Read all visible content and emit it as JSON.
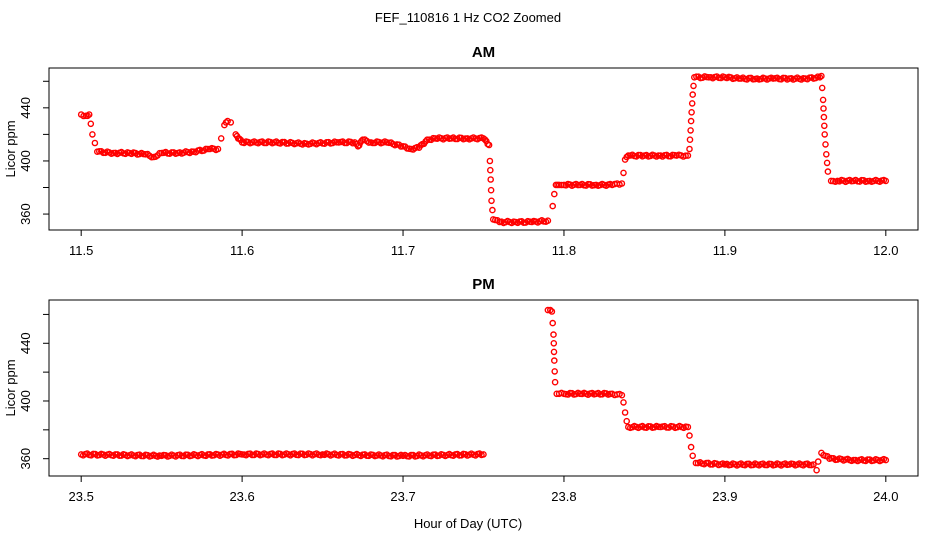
{
  "figure": {
    "title": "FEF_110816  1 Hz CO2 Zoomed",
    "xlabel": "Hour of Day (UTC)"
  },
  "colors": {
    "points": "#ff0000",
    "axes": "#000000",
    "background": "#ffffff"
  },
  "chart_data": [
    {
      "type": "scatter",
      "title": "AM",
      "xlabel": "Hour of Day (UTC)",
      "ylabel": "Licor ppm",
      "xlim": [
        11.48,
        12.02
      ],
      "ylim": [
        348,
        470
      ],
      "xticks": [
        "11.5",
        "11.6",
        "11.7",
        "11.8",
        "11.9",
        "12.0"
      ],
      "yticks": [
        "360",
        "400",
        "440"
      ],
      "grid": false,
      "marker": "open-circle",
      "series": [
        {
          "x": [
            11.5,
            11.503,
            11.504,
            11.505,
            11.506,
            11.507,
            11.51,
            11.52,
            11.53,
            11.54,
            11.545,
            11.55,
            11.56,
            11.57,
            11.58,
            11.585,
            11.587,
            11.589,
            11.591,
            11.593,
            11.596,
            11.6,
            11.62,
            11.64,
            11.66,
            11.67,
            11.672,
            11.675,
            11.68,
            11.69,
            11.7,
            11.705,
            11.71,
            11.715,
            11.72,
            11.73,
            11.74,
            11.75,
            11.7535,
            11.754,
            11.7545,
            11.755,
            11.756,
            11.76,
            11.77,
            11.78,
            11.79,
            11.793,
            11.794,
            11.795,
            11.796,
            11.797,
            11.8,
            11.81,
            11.82,
            11.83,
            11.836,
            11.837,
            11.838,
            11.839,
            11.84,
            11.85,
            11.86,
            11.87,
            11.877,
            11.878,
            11.879,
            11.88,
            11.881,
            11.89,
            11.9,
            11.91,
            11.92,
            11.93,
            11.94,
            11.95,
            11.959,
            11.96,
            11.961,
            11.962,
            11.963,
            11.964,
            11.966,
            11.97,
            11.98,
            11.99,
            12.0
          ],
          "y": [
            435,
            434,
            434,
            435,
            428,
            420,
            407,
            406,
            406,
            405,
            403,
            406,
            406,
            407,
            409,
            409,
            417,
            427,
            430,
            429,
            420,
            414,
            414,
            413,
            414,
            414,
            411,
            416,
            414,
            414,
            411,
            409,
            410,
            416,
            417,
            417,
            417,
            417,
            412,
            400,
            386,
            370,
            356,
            354,
            354,
            354,
            355,
            366,
            375,
            382,
            382,
            382,
            382,
            382,
            382,
            382,
            383,
            391,
            401,
            403,
            404,
            404,
            404,
            404,
            404,
            409,
            430,
            450,
            463,
            463,
            463,
            462,
            462,
            462,
            462,
            462,
            463,
            464,
            446,
            420,
            405,
            392,
            385,
            385,
            385,
            385,
            385
          ]
        }
      ]
    },
    {
      "type": "scatter",
      "title": "PM",
      "xlabel": "Hour of Day (UTC)",
      "ylabel": "Licor ppm",
      "xlim": [
        23.48,
        24.02
      ],
      "ylim": [
        348,
        470
      ],
      "xticks": [
        "23.5",
        "23.6",
        "23.7",
        "23.8",
        "23.9",
        "24.0"
      ],
      "yticks": [
        "360",
        "400",
        "440"
      ],
      "grid": false,
      "marker": "open-circle",
      "series": [
        {
          "x": [
            23.5,
            23.55,
            23.6,
            23.65,
            23.7,
            23.75,
            null,
            23.79,
            23.7915,
            23.7925,
            23.7935,
            23.794,
            23.7945,
            23.7955,
            23.797,
            23.8,
            23.81,
            23.82,
            23.83,
            23.836,
            23.837,
            23.838,
            23.839,
            23.84,
            23.86,
            23.877,
            23.878,
            23.879,
            23.88,
            23.882,
            23.9,
            23.92,
            23.94,
            23.955,
            23.957,
            23.958,
            23.96,
            23.965,
            23.98,
            24.0
          ],
          "y": [
            363,
            362,
            363,
            363,
            362,
            363,
            null,
            463,
            463,
            462,
            446,
            428,
            413,
            405,
            405,
            405,
            405,
            405,
            405,
            404,
            399,
            392,
            386,
            382,
            382,
            382,
            376,
            368,
            362,
            357,
            356,
            356,
            356,
            356,
            352,
            358,
            364,
            360,
            359,
            359
          ]
        }
      ]
    }
  ]
}
